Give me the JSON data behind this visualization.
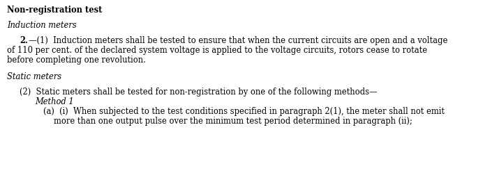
{
  "bg_color": "#ffffff",
  "title": "Non-registration test",
  "section1_heading": "Induction meters",
  "para1_bold": "2.",
  "para1_dash": "—(1)  Induction meters shall be tested to ensure that when the current circuits are open and a voltage",
  "para1_line2": "of 110 per cent. of the declared system voltage is applied to the voltage circuits, rotors cease to rotate",
  "para1_line3": "before completing one revolution.",
  "section2_heading": "Static meters",
  "para2": "(2)  Static meters shall be tested for non-registration by one of the following methods—",
  "method": "Method 1",
  "para3_line1": "(a)  (i)  When subjected to the test conditions specified in paragraph 2(1), the meter shall not emit",
  "para3_line2": "more than one output pulse over the minimum test period determined in paragraph (ii);",
  "fontsize": 8.3,
  "title_fontsize": 8.3
}
